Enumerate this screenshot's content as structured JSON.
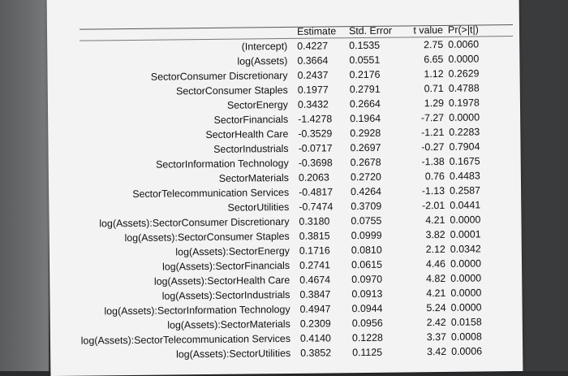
{
  "table": {
    "headers": {
      "label": "",
      "estimate": "Estimate",
      "std_error": "Std. Error",
      "t_value": "t value",
      "p_value": "Pr(>|t|)"
    },
    "rows": [
      {
        "label": "(Intercept)",
        "estimate": "0.4227",
        "std_error": "0.1535",
        "t_value": "2.75",
        "p_value": "0.0060"
      },
      {
        "label": "log(Assets)",
        "estimate": "0.3664",
        "std_error": "0.0551",
        "t_value": "6.65",
        "p_value": "0.0000"
      },
      {
        "label": "SectorConsumer Discretionary",
        "estimate": "0.2437",
        "std_error": "0.2176",
        "t_value": "1.12",
        "p_value": "0.2629"
      },
      {
        "label": "SectorConsumer Staples",
        "estimate": "0.1977",
        "std_error": "0.2791",
        "t_value": "0.71",
        "p_value": "0.4788"
      },
      {
        "label": "SectorEnergy",
        "estimate": "0.3432",
        "std_error": "0.2664",
        "t_value": "1.29",
        "p_value": "0.1978"
      },
      {
        "label": "SectorFinancials",
        "estimate": "-1.4278",
        "std_error": "0.1964",
        "t_value": "-7.27",
        "p_value": "0.0000"
      },
      {
        "label": "SectorHealth Care",
        "estimate": "-0.3529",
        "std_error": "0.2928",
        "t_value": "-1.21",
        "p_value": "0.2283"
      },
      {
        "label": "SectorIndustrials",
        "estimate": "-0.0717",
        "std_error": "0.2697",
        "t_value": "-0.27",
        "p_value": "0.7904"
      },
      {
        "label": "SectorInformation Technology",
        "estimate": "-0.3698",
        "std_error": "0.2678",
        "t_value": "-1.38",
        "p_value": "0.1675"
      },
      {
        "label": "SectorMaterials",
        "estimate": "0.2063",
        "std_error": "0.2720",
        "t_value": "0.76",
        "p_value": "0.4483"
      },
      {
        "label": "SectorTelecommunication Services",
        "estimate": "-0.4817",
        "std_error": "0.4264",
        "t_value": "-1.13",
        "p_value": "0.2587"
      },
      {
        "label": "SectorUtilities",
        "estimate": "-0.7474",
        "std_error": "0.3709",
        "t_value": "-2.01",
        "p_value": "0.0441"
      },
      {
        "label": "log(Assets):SectorConsumer Discretionary",
        "estimate": "0.3180",
        "std_error": "0.0755",
        "t_value": "4.21",
        "p_value": "0.0000"
      },
      {
        "label": "log(Assets):SectorConsumer Staples",
        "estimate": "0.3815",
        "std_error": "0.0999",
        "t_value": "3.82",
        "p_value": "0.0001"
      },
      {
        "label": "log(Assets):SectorEnergy",
        "estimate": "0.1716",
        "std_error": "0.0810",
        "t_value": "2.12",
        "p_value": "0.0342"
      },
      {
        "label": "log(Assets):SectorFinancials",
        "estimate": "0.2741",
        "std_error": "0.0615",
        "t_value": "4.46",
        "p_value": "0.0000"
      },
      {
        "label": "log(Assets):SectorHealth Care",
        "estimate": "0.4674",
        "std_error": "0.0970",
        "t_value": "4.82",
        "p_value": "0.0000"
      },
      {
        "label": "log(Assets):SectorIndustrials",
        "estimate": "0.3847",
        "std_error": "0.0913",
        "t_value": "4.21",
        "p_value": "0.0000"
      },
      {
        "label": "log(Assets):SectorInformation Technology",
        "estimate": "0.4947",
        "std_error": "0.0944",
        "t_value": "5.24",
        "p_value": "0.0000"
      },
      {
        "label": "log(Assets):SectorMaterials",
        "estimate": "0.2309",
        "std_error": "0.0956",
        "t_value": "2.42",
        "p_value": "0.0158"
      },
      {
        "label": "log(Assets):SectorTelecommunication Services",
        "estimate": "0.4140",
        "std_error": "0.1228",
        "t_value": "3.37",
        "p_value": "0.0008"
      },
      {
        "label": "log(Assets):SectorUtilities",
        "estimate": "0.3852",
        "std_error": "0.1125",
        "t_value": "3.42",
        "p_value": "0.0006"
      }
    ]
  }
}
